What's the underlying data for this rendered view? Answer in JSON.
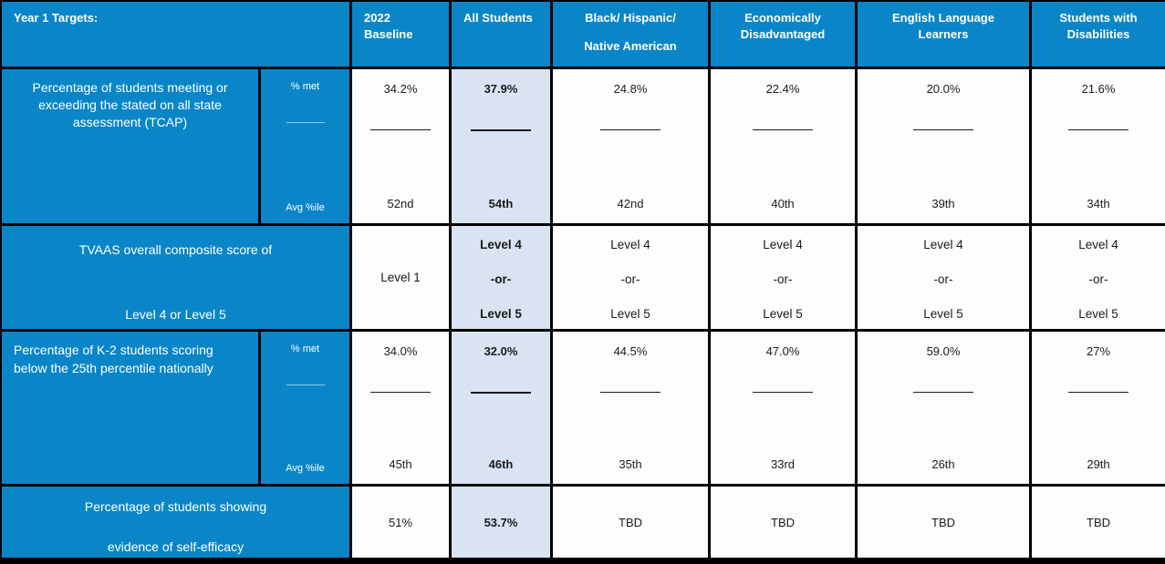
{
  "table_title": "Year 1 Targets:",
  "colors": {
    "header_blue": "#0a86c8",
    "highlight_blue": "#d9e3f1",
    "border_black": "#000000",
    "cell_white": "#fdfdfd",
    "header_text": "#ffffff",
    "body_text": "#1b1b1b"
  },
  "header": {
    "year1_targets": "Year 1 Targets:",
    "baseline_line1": "2022",
    "baseline_line2": "Baseline",
    "all_students": "All Students",
    "black_hispanic_line1": "Black/ Hispanic/",
    "black_hispanic_line2": "Native American",
    "econ_line1": "Economically",
    "econ_line2": "Disadvantaged",
    "ell_line1": "English Language",
    "ell_line2": "Learners",
    "swd_line1": "Students with",
    "swd_line2": "Disabilities"
  },
  "rows": {
    "tcap": {
      "label": "Percentage of students meeting or exceeding the stated on all state assessment (TCAP)",
      "sub_top": "% met",
      "sub_bottom": "Avg %ile",
      "baseline_pct": "34.2%",
      "baseline_ord": "52nd",
      "all_pct": "37.9%",
      "all_ord": "54th",
      "black_hispanic_pct": "24.8%",
      "black_hispanic_ord": "42nd",
      "econ_pct": "22.4%",
      "econ_ord": "40th",
      "ell_pct": "20.0%",
      "ell_ord": "39th",
      "swd_pct": "21.6%",
      "swd_ord": "34th"
    },
    "tvaas": {
      "label_line1": "TVAAS overall composite score of",
      "label_line2": "Level 4 or Level 5",
      "baseline": "Level 1",
      "target_line1": "Level 4",
      "target_line2": "-or-",
      "target_line3": "Level 5"
    },
    "k2": {
      "label": "Percentage of K-2 students scoring below the 25th percentile nationally",
      "sub_top": "% met",
      "sub_bottom": "Avg %ile",
      "baseline_pct": "34.0%",
      "baseline_ord": "45th",
      "all_pct": "32.0%",
      "all_ord": "46th",
      "black_hispanic_pct": "44.5%",
      "black_hispanic_ord": "35th",
      "econ_pct": "47.0%",
      "econ_ord": "33rd",
      "ell_pct": "59.0%",
      "ell_ord": "26th",
      "swd_pct": "27%",
      "swd_ord": "29th"
    },
    "selfefficacy": {
      "label_line1": "Percentage of students showing",
      "label_line2": "evidence of self-efficacy",
      "baseline": "51%",
      "all": "53.7%",
      "black_hispanic": "TBD",
      "econ": "TBD",
      "ell": "TBD",
      "swd": "TBD"
    }
  },
  "chart_data": {
    "type": "table",
    "columns": [
      "Year 1 Targets:",
      "2022 Baseline",
      "All Students",
      "Black/ Hispanic/ Native American",
      "Economically Disadvantaged",
      "English Language Learners",
      "Students with Disabilities"
    ],
    "rows": [
      {
        "metric": "Percentage of students meeting or exceeding the stated on all state assessment (TCAP)",
        "submetrics": [
          "% met",
          "Avg %ile"
        ],
        "values": [
          [
            "34.2%",
            "52nd"
          ],
          [
            "37.9%",
            "54th"
          ],
          [
            "24.8%",
            "42nd"
          ],
          [
            "22.4%",
            "40th"
          ],
          [
            "20.0%",
            "39th"
          ],
          [
            "21.6%",
            "34th"
          ]
        ]
      },
      {
        "metric": "TVAAS overall composite score of Level 4 or Level 5",
        "values": [
          "Level 1",
          "Level 4 -or- Level 5",
          "Level 4 -or- Level 5",
          "Level 4 -or- Level 5",
          "Level 4 -or- Level 5",
          "Level 4 -or- Level 5"
        ]
      },
      {
        "metric": "Percentage of K-2 students scoring below the 25th percentile nationally",
        "submetrics": [
          "% met",
          "Avg %ile"
        ],
        "values": [
          [
            "34.0%",
            "45th"
          ],
          [
            "32.0%",
            "46th"
          ],
          [
            "44.5%",
            "35th"
          ],
          [
            "47.0%",
            "33rd"
          ],
          [
            "59.0%",
            "26th"
          ],
          [
            "27%",
            "29th"
          ]
        ]
      },
      {
        "metric": "Percentage of students showing evidence of self-efficacy",
        "values": [
          "51%",
          "53.7%",
          "TBD",
          "TBD",
          "TBD",
          "TBD"
        ]
      }
    ],
    "highlighted_column": "All Students"
  }
}
